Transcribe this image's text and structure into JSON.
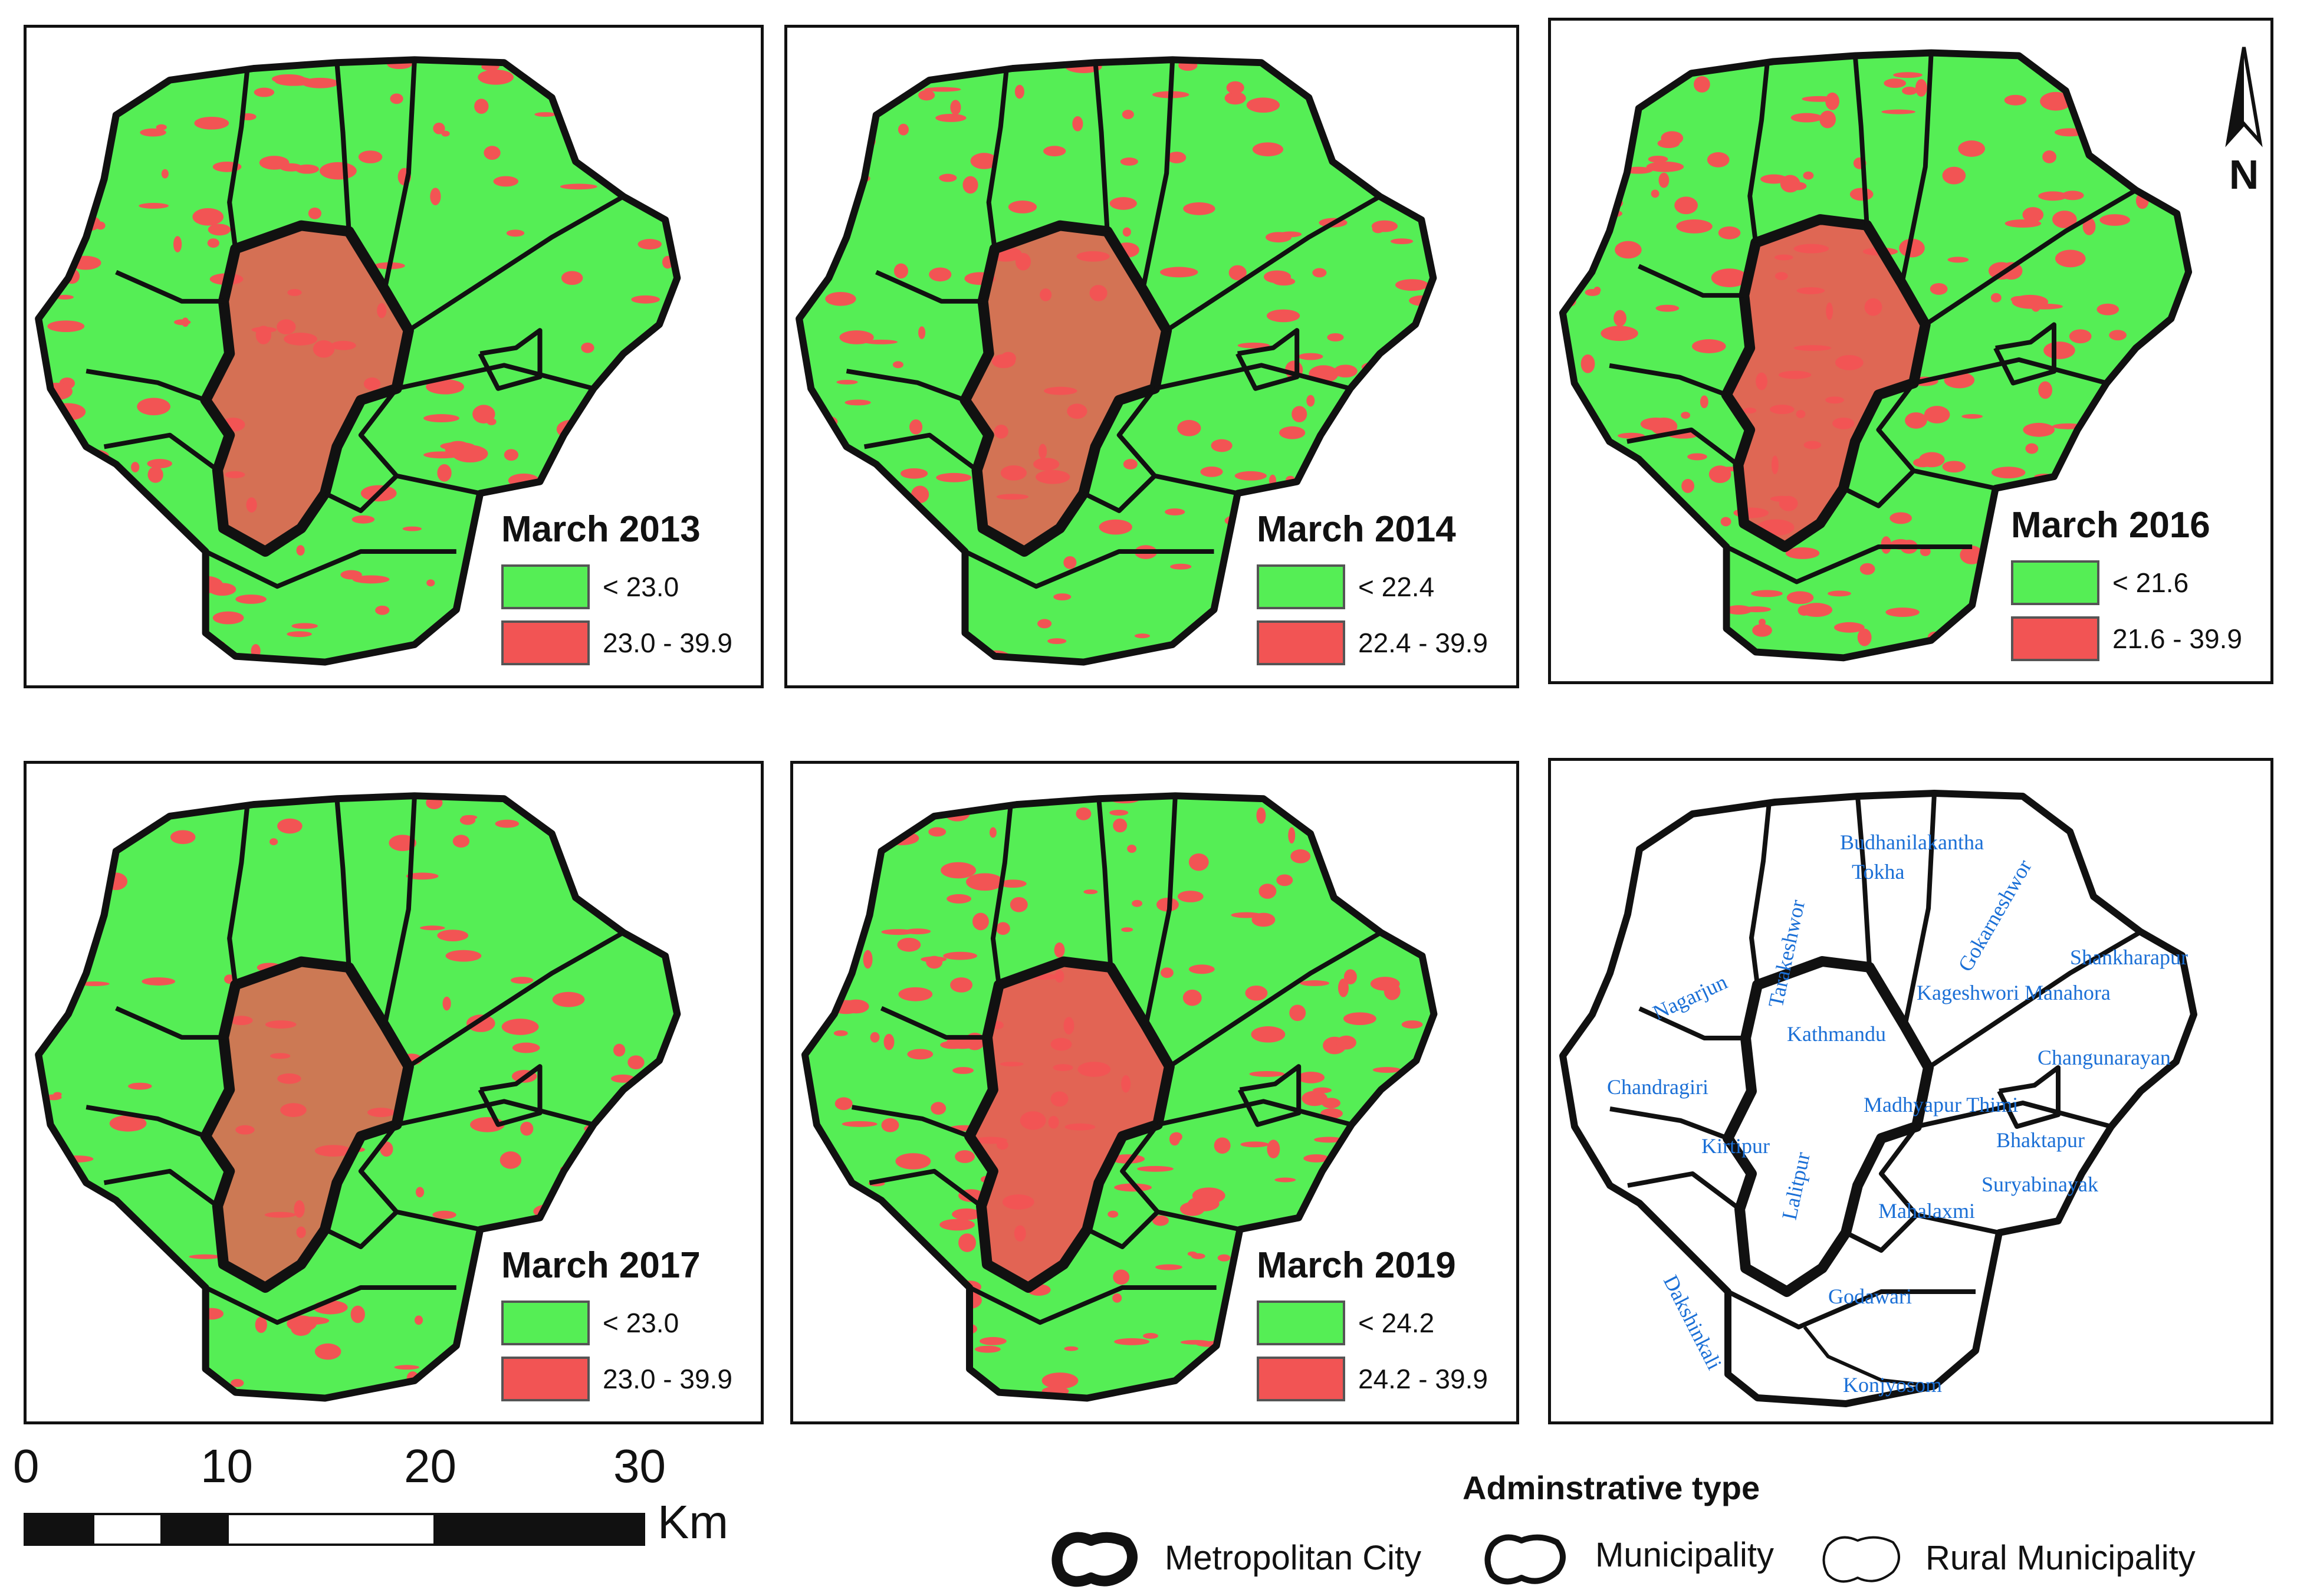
{
  "panels": [
    {
      "title": "March 2013",
      "low_label": "< 23.0",
      "high_label": "23.0 - 39.9"
    },
    {
      "title": "March 2014",
      "low_label": "< 22.4",
      "high_label": "22.4 - 39.9"
    },
    {
      "title": "March 2016",
      "low_label": "< 21.6",
      "high_label": "21.6 - 39.9"
    },
    {
      "title": "March 2017",
      "low_label": "< 23.0",
      "high_label": "23.0 - 39.9"
    },
    {
      "title": "March 2019",
      "low_label": "< 24.2",
      "high_label": "24.2 - 39.9"
    }
  ],
  "colors": {
    "low": "#55ee55",
    "high": "#f25454",
    "label_text": "#1a6fd6"
  },
  "municipalities": [
    "Tarakeshwor",
    "Budhanilakantha",
    "Tokha",
    "Gokarneshwor",
    "Shankharapur",
    "Nagarjun",
    "Kageshwori Manahora",
    "Kathmandu",
    "Chandragiri",
    "Changunarayan",
    "Madhyapur Thimi",
    "Kirtipur",
    "Bhaktapur",
    "Lalitpur",
    "Suryabinayak",
    "Dakshinkali",
    "Mahalaxmi",
    "Godawari",
    "Konjyosom"
  ],
  "scale": {
    "ticks": [
      "0",
      "10",
      "20",
      "30"
    ],
    "unit": "Km"
  },
  "admin_legend": {
    "title": "Adminstrative type",
    "items": [
      {
        "label": "Metropolitan City"
      },
      {
        "label": "Municipality"
      },
      {
        "label": "Rural Municipality"
      }
    ]
  },
  "north_arrow_letter": "N"
}
